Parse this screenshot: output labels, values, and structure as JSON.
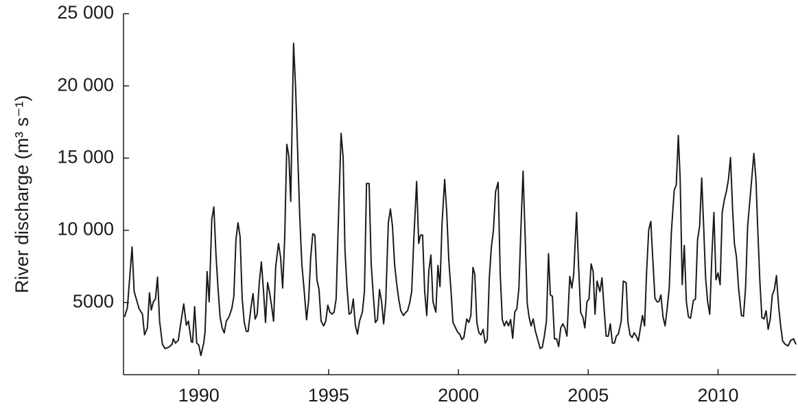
{
  "chart_data": {
    "type": "line",
    "y_label": "River discharge (m³ s⁻¹)",
    "color": "#1a1a1a",
    "xlim": [
      1987.1,
      2013.0
    ],
    "ylim": [
      0,
      25000
    ],
    "xticks": [
      1990,
      1995,
      2000,
      2005,
      2010
    ],
    "yticks": [
      5000,
      {
        "value": 10000,
        "label": "10 000"
      },
      {
        "value": 15000,
        "label": "15 000"
      },
      {
        "value": 20000,
        "label": "20 000"
      },
      {
        "value": 25000,
        "label": "25 000"
      }
    ],
    "grid": false,
    "x": [
      1987.14,
      1987.25,
      1987.43,
      1987.51,
      1987.7,
      1987.83,
      1987.91,
      1988.02,
      1988.1,
      1988.17,
      1988.25,
      1988.33,
      1988.41,
      1988.49,
      1988.6,
      1988.7,
      1988.84,
      1988.97,
      1989.02,
      1989.1,
      1989.21,
      1989.31,
      1989.42,
      1989.52,
      1989.6,
      1989.71,
      1989.76,
      1989.84,
      1989.92,
      1990.0,
      1990.08,
      1990.19,
      1990.24,
      1990.32,
      1990.4,
      1990.5,
      1990.58,
      1990.66,
      1990.74,
      1990.82,
      1990.9,
      1990.98,
      1991.06,
      1991.16,
      1991.27,
      1991.35,
      1991.43,
      1991.51,
      1991.59,
      1991.67,
      1991.75,
      1991.83,
      1991.9,
      1992.01,
      1992.09,
      1992.17,
      1992.25,
      1992.33,
      1992.41,
      1992.49,
      1992.57,
      1992.65,
      1992.72,
      1992.8,
      1992.88,
      1992.96,
      1993.07,
      1993.15,
      1993.23,
      1993.31,
      1993.39,
      1993.47,
      1993.54,
      1993.65,
      1993.73,
      1993.81,
      1993.89,
      1993.97,
      1994.05,
      1994.15,
      1994.23,
      1994.31,
      1994.39,
      1994.47,
      1994.55,
      1994.63,
      1994.71,
      1994.81,
      1994.89,
      1994.97,
      1995.05,
      1995.13,
      1995.21,
      1995.29,
      1995.37,
      1995.48,
      1995.56,
      1995.63,
      1995.71,
      1995.79,
      1995.87,
      1995.95,
      1996.03,
      1996.11,
      1996.19,
      1996.3,
      1996.38,
      1996.46,
      1996.56,
      1996.64,
      1996.72,
      1996.8,
      1996.88,
      1996.96,
      1997.04,
      1997.12,
      1997.2,
      1997.3,
      1997.38,
      1997.46,
      1997.54,
      1997.62,
      1997.7,
      1997.78,
      1997.88,
      1997.96,
      1998.04,
      1998.12,
      1998.2,
      1998.28,
      1998.39,
      1998.47,
      1998.54,
      1998.62,
      1998.7,
      1998.78,
      1998.86,
      1998.94,
      1999.02,
      1999.13,
      1999.21,
      1999.29,
      1999.37,
      1999.47,
      1999.55,
      1999.63,
      1999.71,
      1999.79,
      1999.89,
      1999.97,
      2000.05,
      2000.13,
      2000.21,
      2000.32,
      2000.4,
      2000.48,
      2000.56,
      2000.63,
      2000.71,
      2000.79,
      2000.87,
      2000.95,
      2001.03,
      2001.11,
      2001.19,
      2001.27,
      2001.35,
      2001.43,
      2001.53,
      2001.61,
      2001.69,
      2001.77,
      2001.85,
      2001.93,
      2002.01,
      2002.09,
      2002.17,
      2002.25,
      2002.33,
      2002.41,
      2002.49,
      2002.57,
      2002.65,
      2002.72,
      2002.8,
      2002.88,
      2002.96,
      2003.07,
      2003.15,
      2003.23,
      2003.31,
      2003.39,
      2003.47,
      2003.54,
      2003.62,
      2003.7,
      2003.78,
      2003.86,
      2003.94,
      2004.02,
      2004.1,
      2004.18,
      2004.29,
      2004.37,
      2004.44,
      2004.55,
      2004.63,
      2004.71,
      2004.79,
      2004.87,
      2004.95,
      2005.03,
      2005.11,
      2005.19,
      2005.26,
      2005.34,
      2005.45,
      2005.53,
      2005.61,
      2005.69,
      2005.77,
      2005.85,
      2005.93,
      2006.01,
      2006.08,
      2006.16,
      2006.27,
      2006.35,
      2006.46,
      2006.53,
      2006.61,
      2006.69,
      2006.77,
      2006.85,
      2006.93,
      2007.01,
      2007.09,
      2007.17,
      2007.25,
      2007.33,
      2007.41,
      2007.49,
      2007.57,
      2007.65,
      2007.72,
      2007.8,
      2007.88,
      2007.96,
      2008.04,
      2008.12,
      2008.2,
      2008.31,
      2008.39,
      2008.47,
      2008.54,
      2008.62,
      2008.7,
      2008.78,
      2008.86,
      2008.94,
      2009.05,
      2009.13,
      2009.21,
      2009.29,
      2009.37,
      2009.44,
      2009.52,
      2009.6,
      2009.68,
      2009.76,
      2009.84,
      2009.92,
      2010.0,
      2010.08,
      2010.16,
      2010.24,
      2010.32,
      2010.4,
      2010.48,
      2010.56,
      2010.63,
      2010.71,
      2010.79,
      2010.9,
      2010.98,
      2011.06,
      2011.14,
      2011.22,
      2011.3,
      2011.38,
      2011.46,
      2011.53,
      2011.61,
      2011.69,
      2011.77,
      2011.85,
      2011.93,
      2012.01,
      2012.09,
      2012.17,
      2012.25,
      2012.33,
      2012.41,
      2012.49,
      2012.59,
      2012.7,
      2012.8,
      2012.91,
      2013.0
    ],
    "values": [
      4000,
      4650,
      8850,
      5760,
      4570,
      4190,
      2760,
      3240,
      5670,
      4480,
      5050,
      5240,
      6760,
      3710,
      2100,
      1810,
      1900,
      2100,
      2480,
      2190,
      2380,
      3620,
      4900,
      3430,
      3710,
      2290,
      2240,
      4710,
      2190,
      2050,
      1330,
      2190,
      2950,
      7140,
      5050,
      10760,
      11620,
      8380,
      6000,
      4000,
      3240,
      2900,
      3710,
      4000,
      4570,
      5430,
      9330,
      10520,
      9570,
      5290,
      3620,
      3000,
      3000,
      4670,
      5620,
      3860,
      4190,
      6380,
      7810,
      5860,
      3620,
      6380,
      5760,
      4810,
      3710,
      7430,
      9090,
      8140,
      6000,
      9570,
      15950,
      15140,
      12000,
      22950,
      19810,
      15290,
      10860,
      7620,
      6000,
      3810,
      5140,
      8140,
      9760,
      9670,
      6570,
      5900,
      3710,
      3380,
      3710,
      4810,
      4330,
      4190,
      4330,
      5240,
      10290,
      16710,
      15040,
      8620,
      6000,
      4190,
      4290,
      5240,
      3430,
      2810,
      3710,
      4330,
      5760,
      13240,
      13240,
      7670,
      5520,
      3620,
      3810,
      5900,
      5050,
      3520,
      5050,
      10520,
      11470,
      10290,
      7670,
      6330,
      5240,
      4430,
      4100,
      4290,
      4430,
      4950,
      5760,
      9330,
      13380,
      9090,
      9670,
      9670,
      5760,
      4100,
      7190,
      8290,
      5050,
      4330,
      7570,
      6100,
      10520,
      13520,
      11240,
      7900,
      5900,
      3620,
      3240,
      2950,
      2810,
      2430,
      2570,
      3860,
      3620,
      4100,
      7430,
      6950,
      3620,
      2900,
      2760,
      3140,
      2190,
      2430,
      6710,
      8860,
      10040,
      12670,
      13330,
      6950,
      3810,
      3380,
      3710,
      3380,
      3810,
      2520,
      4330,
      4570,
      6000,
      10290,
      14100,
      9570,
      4950,
      4000,
      3380,
      3860,
      3050,
      2330,
      1810,
      1900,
      2670,
      3710,
      8380,
      5520,
      5430,
      2480,
      2480,
      1950,
      3240,
      3520,
      3240,
      2670,
      6810,
      6000,
      6950,
      11240,
      7430,
      4290,
      4000,
      3240,
      5050,
      5240,
      7670,
      7140,
      4190,
      6480,
      5760,
      6710,
      4570,
      2670,
      2670,
      3520,
      2190,
      2190,
      2670,
      2810,
      3710,
      6480,
      6380,
      3620,
      2760,
      2570,
      2900,
      2670,
      2330,
      3240,
      4100,
      3380,
      7190,
      10040,
      10620,
      7900,
      5290,
      5050,
      5050,
      5520,
      4000,
      3380,
      4570,
      6000,
      9810,
      12760,
      13140,
      16570,
      13620,
      6240,
      8950,
      5050,
      4000,
      3910,
      5140,
      5240,
      9330,
      10290,
      13620,
      10520,
      6710,
      5050,
      4190,
      8140,
      11240,
      6570,
      7050,
      6240,
      11240,
      12100,
      12670,
      13520,
      15040,
      11470,
      9090,
      8140,
      6000,
      4100,
      4050,
      6000,
      10290,
      11950,
      13620,
      15330,
      13520,
      10040,
      6480,
      3950,
      3860,
      4430,
      3140,
      3860,
      5520,
      5900,
      6860,
      4810,
      3380,
      2330,
      2100,
      2000,
      2380,
      2480,
      2100
    ]
  }
}
